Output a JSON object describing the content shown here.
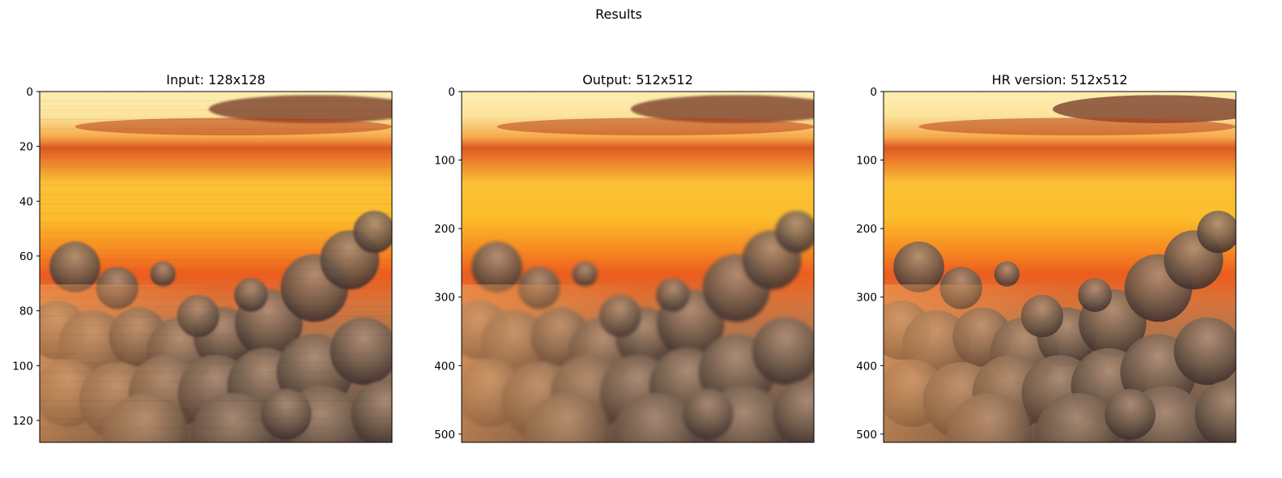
{
  "figure": {
    "title": "Results"
  },
  "chart_data": [
    {
      "type": "image",
      "title": "Input: 128x128",
      "yticks": [
        0,
        20,
        40,
        60,
        80,
        100,
        120
      ],
      "ylim": [
        0,
        128
      ],
      "xticks_visible": false,
      "content": "sunset sky with cumulus clouds (pixelated)",
      "colors": {
        "sky_top": "#fbe7a4",
        "band": "#d9481e",
        "mid": "#f6a522",
        "clouds": "#6e5a4a"
      }
    },
    {
      "type": "image",
      "title": "Output: 512x512",
      "yticks": [
        0,
        100,
        200,
        300,
        400,
        500
      ],
      "ylim": [
        0,
        512
      ],
      "xticks_visible": false,
      "content": "sunset sky with cumulus clouds (smoothed)",
      "colors": {
        "sky_top": "#fbe7a4",
        "band": "#d9481e",
        "mid": "#f6a522",
        "clouds": "#6e5a4a"
      }
    },
    {
      "type": "image",
      "title": "HR version: 512x512",
      "yticks": [
        0,
        100,
        200,
        300,
        400,
        500
      ],
      "ylim": [
        0,
        512
      ],
      "xticks_visible": false,
      "content": "sunset sky with cumulus clouds (sharp)",
      "colors": {
        "sky_top": "#fbe7a4",
        "band": "#d9481e",
        "mid": "#f6a522",
        "clouds": "#6e5a4a"
      }
    }
  ]
}
